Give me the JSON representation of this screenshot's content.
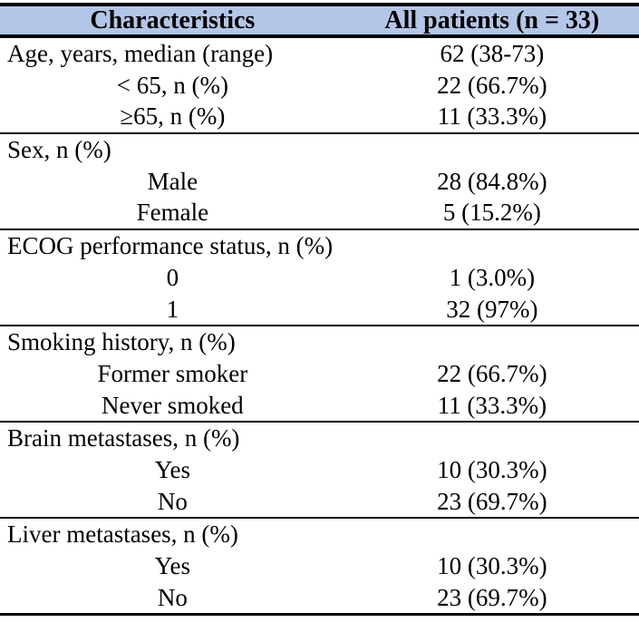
{
  "table": {
    "header": {
      "characteristics": "Characteristics",
      "all_patients": "All patients (n = 33)"
    },
    "sections": [
      {
        "rows": [
          {
            "label": "Age, years, median (range)",
            "value": "62 (38-73)",
            "indent": "none"
          },
          {
            "label": "< 65, n (%)",
            "value": "22 (66.7%)",
            "indent": "center"
          },
          {
            "label": "≥65, n (%)",
            "value": "11 (33.3%)",
            "indent": "center"
          }
        ]
      },
      {
        "rows": [
          {
            "label": "Sex, n (%)",
            "value": "",
            "indent": "none"
          },
          {
            "label": "Male",
            "value": "28 (84.8%)",
            "indent": "center"
          },
          {
            "label": "Female",
            "value": "5 (15.2%)",
            "indent": "center"
          }
        ]
      },
      {
        "rows": [
          {
            "label": "ECOG performance status, n (%)",
            "value": "",
            "indent": "none"
          },
          {
            "label": "0",
            "value": "1 (3.0%)",
            "indent": "center"
          },
          {
            "label": "1",
            "value": "32 (97%)",
            "indent": "center"
          }
        ]
      },
      {
        "rows": [
          {
            "label": "Smoking history, n (%)",
            "value": "",
            "indent": "none"
          },
          {
            "label": "Former smoker",
            "value": "22 (66.7%)",
            "indent": "center"
          },
          {
            "label": "Never smoked",
            "value": "11 (33.3%)",
            "indent": "center"
          }
        ]
      },
      {
        "rows": [
          {
            "label": "Brain metastases, n (%)",
            "value": "",
            "indent": "none"
          },
          {
            "label": "Yes",
            "value": "10 (30.3%)",
            "indent": "center"
          },
          {
            "label": "No",
            "value": "23 (69.7%)",
            "indent": "center"
          }
        ]
      },
      {
        "rows": [
          {
            "label": "Liver metastases, n (%)",
            "value": "",
            "indent": "none"
          },
          {
            "label": "Yes",
            "value": "10 (30.3%)",
            "indent": "center"
          },
          {
            "label": "No",
            "value": "23 (69.7%)",
            "indent": "center"
          }
        ]
      }
    ],
    "colors": {
      "header_bg": "#b4c6e7",
      "rule": "#000000",
      "text": "#000000",
      "page_bg": "#ffffff"
    }
  }
}
